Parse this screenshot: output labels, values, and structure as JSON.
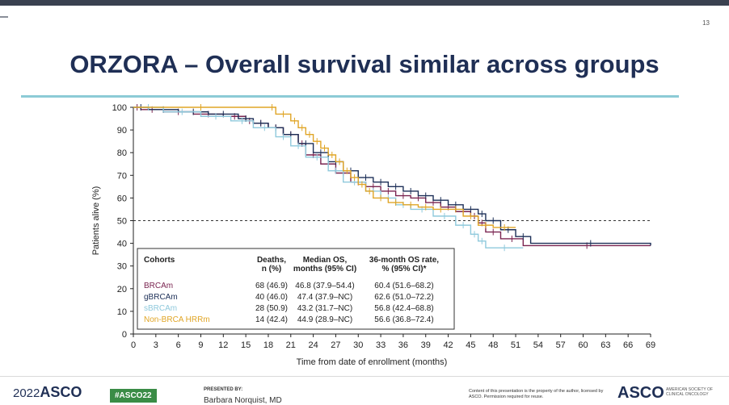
{
  "slide": {
    "number": "13",
    "title": "ORZORA – Overall survival similar across groups"
  },
  "footer": {
    "meeting_year": "2022",
    "meeting_name": "ASCO",
    "hashtag": "#ASCO22",
    "presented_by_label": "PRESENTED BY:",
    "presenter": "Barbara Norquist, MD",
    "copyright": "Content of this presentation is the property of the author, licensed by ASCO. Permission required for reuse.",
    "asco_logo": "ASCO",
    "asco_subtitle": "AMERICAN SOCIETY OF CLINICAL ONCOLOGY"
  },
  "colors": {
    "BRCAm": "#7a2450",
    "gBRCAm": "#1c2f57",
    "sBRCAm": "#8fc9dc",
    "Non-BRCA HRRm": "#e0a526",
    "title": "#1f2f55",
    "rule": "#8ccbd6"
  },
  "chart_data": {
    "type": "line",
    "subtype": "kaplan-meier",
    "xlabel": "Time from date of enrollment (months)",
    "ylabel": "Patients alive (%)",
    "xlim": [
      0,
      69
    ],
    "ylim": [
      0,
      100
    ],
    "xticks": [
      0,
      3,
      6,
      9,
      12,
      15,
      18,
      21,
      24,
      27,
      30,
      33,
      36,
      39,
      42,
      45,
      48,
      51,
      54,
      57,
      60,
      63,
      66,
      69
    ],
    "yticks": [
      0,
      10,
      20,
      30,
      40,
      50,
      60,
      70,
      80,
      90,
      100
    ],
    "reference_line_y": 50,
    "series": [
      {
        "name": "BRCAm",
        "color": "#7a2450",
        "x": [
          0,
          1,
          4,
          8,
          12,
          15,
          16,
          18,
          20,
          22,
          23,
          25,
          27,
          29,
          31,
          33,
          35,
          37,
          39,
          41,
          43,
          45,
          46,
          47,
          49,
          52,
          69
        ],
        "y": [
          100,
          99,
          98,
          97,
          96,
          94,
          93,
          91,
          88,
          84,
          79,
          75,
          71,
          67,
          65,
          63,
          61,
          60,
          58,
          56,
          54,
          52,
          49,
          45,
          42,
          39,
          39
        ]
      },
      {
        "name": "gBRCAm",
        "color": "#1c2f57",
        "x": [
          0,
          2,
          6,
          10,
          14,
          16,
          18,
          20,
          22,
          24,
          26,
          28,
          30,
          32,
          34,
          36,
          38,
          40,
          42,
          44,
          46,
          47,
          49,
          51,
          53,
          69
        ],
        "y": [
          100,
          99,
          98,
          97,
          95,
          93,
          91,
          88,
          84,
          80,
          76,
          72,
          69,
          67,
          65,
          63,
          61,
          59,
          57,
          55,
          53,
          50,
          46,
          43,
          40,
          39
        ]
      },
      {
        "name": "sBRCAm",
        "color": "#8fc9dc",
        "x": [
          0,
          4,
          9,
          13,
          16,
          19,
          21,
          23,
          26,
          28,
          31,
          33,
          35,
          37,
          40,
          43,
          45,
          46,
          47,
          52
        ],
        "y": [
          100,
          98,
          96,
          94,
          91,
          87,
          83,
          78,
          72,
          67,
          63,
          60,
          57,
          55,
          52,
          48,
          44,
          41,
          38,
          38
        ]
      },
      {
        "name": "Non-BRCA HRRm",
        "color": "#e0a526",
        "x": [
          0,
          18,
          19,
          21,
          22,
          23,
          24,
          25,
          26,
          27,
          28,
          29,
          30,
          31,
          32,
          34,
          36,
          38,
          40,
          42,
          44,
          46,
          48,
          51
        ],
        "y": [
          100,
          100,
          97,
          94,
          91,
          88,
          85,
          82,
          79,
          76,
          72,
          69,
          66,
          63,
          60,
          58,
          57,
          56,
          55,
          55,
          52,
          48,
          47,
          47
        ]
      }
    ],
    "table": {
      "headers": [
        "Cohorts",
        "Deaths,\nn (%)",
        "Median OS,\nmonths (95% CI)",
        "36-month OS rate,\n% (95% CI)*"
      ],
      "rows": [
        [
          "BRCAm",
          "68 (46.9)",
          "46.8 (37.9–54.4)",
          "60.4 (51.6–68.2)"
        ],
        [
          "gBRCAm",
          "40 (46.0)",
          "47.4 (37.9–NC)",
          "62.6 (51.0–72.2)"
        ],
        [
          "sBRCAm",
          "28 (50.9)",
          "43.2 (31.7–NC)",
          "56.8 (42.4–68.8)"
        ],
        [
          "Non-BRCA HRRm",
          "14 (42.4)",
          "44.9 (28.9–NC)",
          "56.6 (36.8–72.4)"
        ]
      ]
    }
  }
}
